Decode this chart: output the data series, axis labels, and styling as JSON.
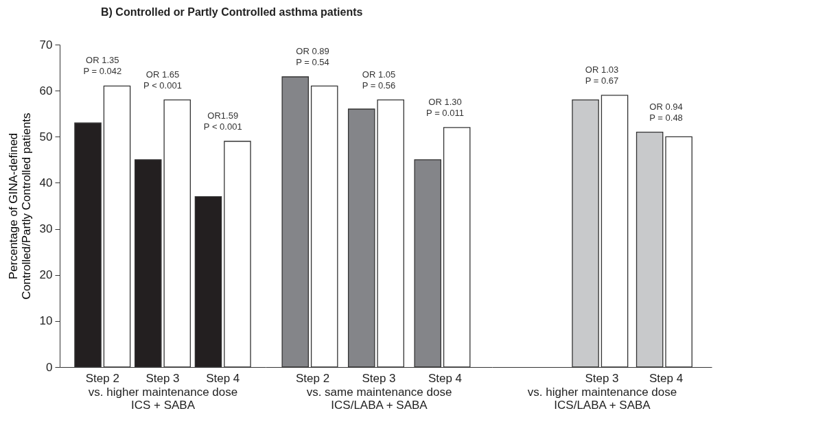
{
  "chart_data": [
    {
      "type": "bar",
      "title": "B) Controlled or Partly Controlled asthma patients",
      "ylabel": "Percentage of GINA-defined\nControlled/Partly Controlled patients",
      "xlabel": "vs. higher maintenance dose\nICS + SABA",
      "categories": [
        "Step 2",
        "Step 3",
        "Step 4"
      ],
      "ylim": [
        0,
        70
      ],
      "yticks": [
        0,
        10,
        20,
        30,
        40,
        50,
        60,
        70
      ],
      "series": [
        {
          "color": "#231f20",
          "values": [
            53,
            45,
            37
          ]
        },
        {
          "color": "#ffffff",
          "values": [
            61,
            58,
            49
          ]
        }
      ],
      "annotations": [
        "OR 1.35",
        "P = 0.042",
        "OR 1.65",
        "P < 0.001",
        "OR1.59",
        "P < 0.001"
      ]
    },
    {
      "type": "bar",
      "xlabel": "vs. same maintenance dose\nICS/LABA + SABA",
      "categories": [
        "Step 2",
        "Step 3",
        "Step 4"
      ],
      "ylim": [
        0,
        70
      ],
      "yticks": [
        0,
        10,
        20,
        30,
        40,
        50,
        60,
        70
      ],
      "tick_labels": "x",
      "series": [
        {
          "color": "#848589",
          "values": [
            63,
            56,
            45
          ]
        },
        {
          "color": "#ffffff",
          "values": [
            61,
            58,
            52
          ]
        }
      ],
      "annotations": [
        "OR 0.89",
        "P = 0.54",
        "OR 1.05",
        "P = 0.56",
        "OR 1.30",
        "P = 0.011"
      ]
    },
    {
      "type": "bar",
      "xlabel": "vs. higher maintenance dose\nICS/LABA + SABA",
      "categories": [
        null,
        "Step 3",
        "Step 4"
      ],
      "ylim": [
        0,
        70
      ],
      "yticks": [
        0,
        10,
        20,
        30,
        40,
        50,
        60,
        70
      ],
      "tick_labels": "x",
      "series": [
        {
          "color": "#c8c9cb",
          "values": [
            null,
            58,
            51
          ]
        },
        {
          "color": "#ffffff",
          "values": [
            null,
            59,
            50
          ]
        }
      ],
      "annotations": [
        "OR 1.03",
        "P = 0.67",
        "OR 0.94",
        "P = 0.48"
      ]
    }
  ]
}
